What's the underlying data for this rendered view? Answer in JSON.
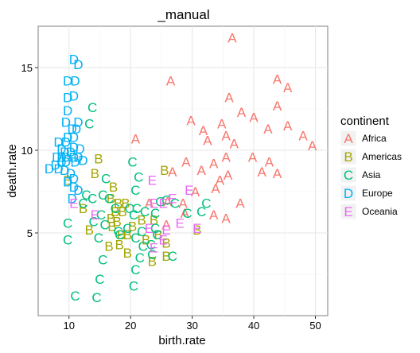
{
  "chart_data": {
    "type": "scatter",
    "title": "_manual",
    "xlabel": "birth.rate",
    "ylabel": "death.rate",
    "xlim": [
      5,
      52
    ],
    "ylim": [
      0,
      17.5
    ],
    "x_ticks": [
      "10",
      "20",
      "30",
      "40",
      "50"
    ],
    "y_ticks": [
      "5",
      "10",
      "15"
    ],
    "x_tick_values": [
      10,
      20,
      30,
      40,
      50
    ],
    "y_tick_values": [
      5,
      10,
      15
    ],
    "grid": true,
    "legend_placement": "right",
    "legend_title": "continent",
    "marker": "letter",
    "series": [
      {
        "name": "Africa",
        "letter": "A",
        "color": "#F8766D",
        "points": [
          [
            36.5,
            16.8
          ],
          [
            26.5,
            14.2
          ],
          [
            43.8,
            14.3
          ],
          [
            45.5,
            13.8
          ],
          [
            36,
            13.2
          ],
          [
            43.8,
            12.7
          ],
          [
            38,
            12.3
          ],
          [
            40,
            12
          ],
          [
            45.5,
            11.5
          ],
          [
            29.8,
            11.8
          ],
          [
            34.8,
            11.6
          ],
          [
            31.8,
            11.2
          ],
          [
            20.8,
            10.7
          ],
          [
            35.5,
            10.9
          ],
          [
            32.5,
            10.6
          ],
          [
            42.3,
            11.3
          ],
          [
            48,
            10.9
          ],
          [
            36.8,
            10.4
          ],
          [
            49.5,
            10.3
          ],
          [
            35.5,
            9.6
          ],
          [
            39.8,
            9.6
          ],
          [
            42.5,
            9.3
          ],
          [
            41.3,
            8.7
          ],
          [
            43.8,
            8.6
          ],
          [
            29,
            9.3
          ],
          [
            33.5,
            9.2
          ],
          [
            26.8,
            8.7
          ],
          [
            31.5,
            8.8
          ],
          [
            35.8,
            8.5
          ],
          [
            33.8,
            7.7
          ],
          [
            34.5,
            8.2
          ],
          [
            30.5,
            7.5
          ],
          [
            26,
            6.9
          ],
          [
            37.8,
            6.8
          ],
          [
            28.5,
            6.8
          ],
          [
            28.8,
            6.2
          ],
          [
            33.5,
            6.1
          ],
          [
            35.5,
            5.9
          ],
          [
            23,
            6.8
          ],
          [
            25.8,
            5.5
          ]
        ]
      },
      {
        "name": "Americas",
        "letter": "B",
        "color": "#A3A500",
        "points": [
          [
            14.8,
            9.5
          ],
          [
            25.5,
            8.8
          ],
          [
            9.8,
            8.2
          ],
          [
            14.2,
            8.6
          ],
          [
            16.8,
            7.1
          ],
          [
            17.2,
            7.8
          ],
          [
            18,
            6.8
          ],
          [
            19.2,
            6.8
          ],
          [
            17.5,
            6.3
          ],
          [
            18.7,
            6.3
          ],
          [
            16.8,
            5.9
          ],
          [
            17.8,
            5.7
          ],
          [
            21.8,
            5.8
          ],
          [
            23.8,
            5.8
          ],
          [
            13.3,
            5.2
          ],
          [
            17,
            5.4
          ],
          [
            18.5,
            4.9
          ],
          [
            19.5,
            4.9
          ],
          [
            20.3,
            5.4
          ],
          [
            22.5,
            4.6
          ],
          [
            24.5,
            4.9
          ],
          [
            25.8,
            4.4
          ],
          [
            12.3,
            6.5
          ],
          [
            16.5,
            4.2
          ],
          [
            18.2,
            4.3
          ],
          [
            19.5,
            3.8
          ],
          [
            23.5,
            3.3
          ],
          [
            25.8,
            3.6
          ],
          [
            30.8,
            5.2
          ]
        ]
      },
      {
        "name": "Asia",
        "letter": "C",
        "color": "#00BF7D",
        "points": [
          [
            13.8,
            12.6
          ],
          [
            13.3,
            11.6
          ],
          [
            20.3,
            9.3
          ],
          [
            21.3,
            8.4
          ],
          [
            20.8,
            7.6
          ],
          [
            16,
            8.3
          ],
          [
            12.8,
            7.3
          ],
          [
            13.8,
            7.1
          ],
          [
            15.5,
            7.3
          ],
          [
            16.5,
            7.1
          ],
          [
            12.3,
            6.8
          ],
          [
            15.2,
            6.1
          ],
          [
            14,
            5.7
          ],
          [
            17.5,
            6.5
          ],
          [
            19.8,
            6.5
          ],
          [
            21,
            6.5
          ],
          [
            24,
            6.2
          ],
          [
            24.8,
            6.9
          ],
          [
            25.8,
            7
          ],
          [
            27.2,
            6.8
          ],
          [
            20.5,
            6.1
          ],
          [
            22.3,
            6.3
          ],
          [
            18,
            5.1
          ],
          [
            19.5,
            5.3
          ],
          [
            21.8,
            5.1
          ],
          [
            24,
            5.3
          ],
          [
            9.8,
            5.6
          ],
          [
            15.8,
            5.5
          ],
          [
            18.2,
            4.9
          ],
          [
            20.8,
            4.7
          ],
          [
            22,
            4.2
          ],
          [
            23.3,
            4.3
          ],
          [
            24.3,
            4.9
          ],
          [
            9.8,
            4.6
          ],
          [
            14.8,
            4.7
          ],
          [
            21.5,
            3.5
          ],
          [
            23.5,
            3.7
          ],
          [
            26.8,
            3.6
          ],
          [
            15.5,
            3.4
          ],
          [
            20.8,
            2.8
          ],
          [
            20.5,
            1.8
          ],
          [
            15,
            2.2
          ],
          [
            11,
            1.2
          ],
          [
            14.5,
            1.1
          ],
          [
            29.2,
            6.2
          ],
          [
            31.5,
            6.3
          ],
          [
            32.3,
            6.8
          ]
        ]
      },
      {
        "name": "Europe",
        "letter": "D",
        "color": "#00B0F6",
        "points": [
          [
            10.8,
            15.5
          ],
          [
            11.5,
            15.2
          ],
          [
            9.8,
            14.2
          ],
          [
            11,
            14.2
          ],
          [
            9.8,
            13.2
          ],
          [
            10.8,
            13.3
          ],
          [
            9.8,
            12.4
          ],
          [
            9.5,
            11.7
          ],
          [
            11.5,
            11.7
          ],
          [
            10.5,
            11.3
          ],
          [
            11.2,
            11.3
          ],
          [
            9.8,
            10.8
          ],
          [
            10.8,
            10.8
          ],
          [
            8.3,
            10.5
          ],
          [
            9.5,
            10.5
          ],
          [
            8.8,
            10.1
          ],
          [
            10.8,
            10.2
          ],
          [
            11.8,
            10.1
          ],
          [
            9.3,
            9.9
          ],
          [
            10.3,
            9.9
          ],
          [
            8,
            9.6
          ],
          [
            8.8,
            9.6
          ],
          [
            9.5,
            9.6
          ],
          [
            10.8,
            9.6
          ],
          [
            11.5,
            9.6
          ],
          [
            12.3,
            9.4
          ],
          [
            8.8,
            9.3
          ],
          [
            9.5,
            9.3
          ],
          [
            11,
            9.3
          ],
          [
            7.8,
            9.1
          ],
          [
            8.3,
            8.9
          ],
          [
            9.3,
            8.8
          ],
          [
            10.3,
            8.6
          ],
          [
            6.8,
            8.9
          ],
          [
            10.8,
            8.3
          ],
          [
            9.8,
            8.1
          ],
          [
            10.8,
            7.8
          ],
          [
            11.5,
            7.6
          ],
          [
            10.5,
            7.1
          ]
        ]
      },
      {
        "name": "Oceania",
        "letter": "E",
        "color": "#E76BF3",
        "points": [
          [
            23.5,
            8.2
          ],
          [
            29.5,
            7.6
          ],
          [
            10.8,
            6.8
          ],
          [
            14.2,
            6.1
          ],
          [
            23.8,
            6.8
          ],
          [
            25.3,
            6.8
          ],
          [
            26.8,
            7.1
          ],
          [
            28,
            5.6
          ],
          [
            25.8,
            5.2
          ],
          [
            23,
            5.3
          ],
          [
            30.8,
            5.3
          ],
          [
            25.3,
            4.6
          ],
          [
            23.8,
            4.1
          ]
        ]
      }
    ]
  }
}
